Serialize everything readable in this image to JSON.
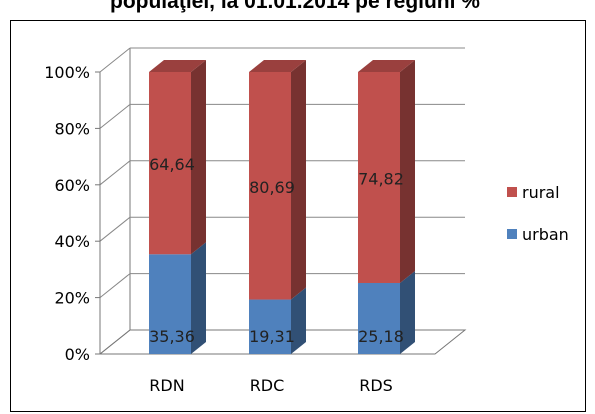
{
  "chart_data": {
    "type": "bar",
    "stacked": true,
    "stacked_100_percent": true,
    "three_d": true,
    "title": "populaţiei, la 01.01.2014 pe regiuni %",
    "categories": [
      "RDN",
      "RDC",
      "RDS"
    ],
    "series": [
      {
        "name": "urban",
        "values": [
          35.36,
          19.31,
          25.18
        ],
        "labels": [
          "35,36",
          "19,31",
          "25,18"
        ],
        "color": "#4f81bd"
      },
      {
        "name": "rural",
        "values": [
          64.64,
          80.69,
          74.82
        ],
        "labels": [
          "64,64",
          "80,69",
          "74,82"
        ],
        "color": "#c0504d"
      }
    ],
    "y_ticks": [
      "0%",
      "20%",
      "40%",
      "60%",
      "80%",
      "100%"
    ],
    "ylim": [
      0,
      100
    ],
    "grid": true,
    "legend_position": "right",
    "legend_order": [
      "rural",
      "urban"
    ]
  }
}
